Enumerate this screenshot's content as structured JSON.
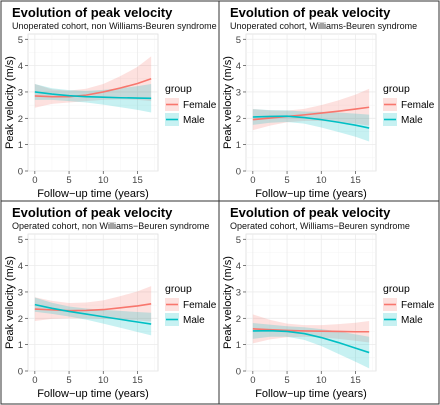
{
  "chart_data": [
    {
      "type": "line",
      "title": "Evolution of peak velocity",
      "subtitle": "Unoperated cohort, non Williams-Beuren syndrome",
      "xlabel": "Follow−up time (years)",
      "ylabel": "Peak velocity (m/s)",
      "xlim": [
        -1,
        18
      ],
      "ylim": [
        0,
        5.2
      ],
      "xticks": [
        0,
        5,
        10,
        15
      ],
      "yticks": [
        0,
        1,
        2,
        3,
        4,
        5
      ],
      "grid": true,
      "legend": {
        "title": "group",
        "position": "right"
      },
      "series": [
        {
          "name": "Female",
          "color": "#F8766D",
          "x": [
            0,
            2.5,
            5,
            7.5,
            10,
            12.5,
            15,
            17
          ],
          "y": [
            2.85,
            2.82,
            2.82,
            2.88,
            3.0,
            3.15,
            3.32,
            3.5
          ],
          "lower": [
            2.4,
            2.55,
            2.6,
            2.65,
            2.7,
            2.72,
            2.7,
            2.65
          ],
          "upper": [
            3.3,
            3.1,
            3.05,
            3.12,
            3.3,
            3.6,
            3.95,
            4.35
          ]
        },
        {
          "name": "Male",
          "color": "#00BFC4",
          "x": [
            0,
            2.5,
            5,
            7.5,
            10,
            12.5,
            15,
            17
          ],
          "y": [
            3.0,
            2.92,
            2.86,
            2.82,
            2.8,
            2.78,
            2.77,
            2.76
          ],
          "lower": [
            2.7,
            2.7,
            2.65,
            2.6,
            2.52,
            2.42,
            2.32,
            2.22
          ],
          "upper": [
            3.3,
            3.14,
            3.07,
            3.04,
            3.08,
            3.14,
            3.22,
            3.3
          ]
        }
      ]
    },
    {
      "type": "line",
      "title": "Evolution of peak velocity",
      "subtitle": "Unoperated cohort, Williams-Beuren syndrome",
      "xlabel": "Follow−up time (years)",
      "ylabel": "Peak velocity (m/s)",
      "xlim": [
        -1,
        18
      ],
      "ylim": [
        0,
        5.2
      ],
      "xticks": [
        0,
        5,
        10,
        15
      ],
      "yticks": [
        0,
        1,
        2,
        3,
        4,
        5
      ],
      "grid": true,
      "legend": {
        "title": "group",
        "position": "right"
      },
      "series": [
        {
          "name": "Female",
          "color": "#F8766D",
          "x": [
            0,
            2.5,
            5,
            7.5,
            10,
            12.5,
            15,
            17
          ],
          "y": [
            1.95,
            2.01,
            2.07,
            2.13,
            2.2,
            2.27,
            2.35,
            2.42
          ],
          "lower": [
            1.55,
            1.72,
            1.85,
            1.9,
            1.9,
            1.86,
            1.8,
            1.72
          ],
          "upper": [
            2.35,
            2.3,
            2.29,
            2.36,
            2.5,
            2.68,
            2.9,
            3.12
          ]
        },
        {
          "name": "Male",
          "color": "#00BFC4",
          "x": [
            0,
            2.5,
            5,
            7.5,
            10,
            12.5,
            15,
            17
          ],
          "y": [
            2.05,
            2.07,
            2.08,
            2.03,
            1.95,
            1.85,
            1.74,
            1.63
          ],
          "lower": [
            1.75,
            1.83,
            1.86,
            1.8,
            1.65,
            1.48,
            1.3,
            1.12
          ],
          "upper": [
            2.35,
            2.31,
            2.3,
            2.26,
            2.25,
            2.22,
            2.18,
            2.14
          ]
        }
      ]
    },
    {
      "type": "line",
      "title": "Evolution of peak velocity",
      "subtitle": "Operated cohort, non Williams−Beuren syndrome",
      "xlabel": "Follow−up time (years)",
      "ylabel": "Peak velocity (m/s)",
      "xlim": [
        -1,
        18
      ],
      "ylim": [
        0,
        5.2
      ],
      "xticks": [
        0,
        5,
        10,
        15
      ],
      "yticks": [
        0,
        1,
        2,
        3,
        4,
        5
      ],
      "grid": true,
      "legend": {
        "title": "group",
        "position": "right"
      },
      "series": [
        {
          "name": "Female",
          "color": "#F8766D",
          "x": [
            0,
            2.5,
            5,
            7.5,
            10,
            12.5,
            15,
            17
          ],
          "y": [
            2.35,
            2.32,
            2.29,
            2.3,
            2.33,
            2.4,
            2.47,
            2.55
          ],
          "lower": [
            1.9,
            1.98,
            2.0,
            2.0,
            1.98,
            1.96,
            1.92,
            1.88
          ],
          "upper": [
            2.8,
            2.66,
            2.58,
            2.6,
            2.68,
            2.84,
            3.02,
            3.22
          ]
        },
        {
          "name": "Male",
          "color": "#00BFC4",
          "x": [
            0,
            2.5,
            5,
            7.5,
            10,
            12.5,
            15,
            17
          ],
          "y": [
            2.52,
            2.38,
            2.26,
            2.16,
            2.06,
            1.96,
            1.86,
            1.78
          ],
          "lower": [
            2.25,
            2.17,
            2.07,
            1.95,
            1.8,
            1.64,
            1.48,
            1.35
          ],
          "upper": [
            2.79,
            2.59,
            2.45,
            2.37,
            2.32,
            2.28,
            2.24,
            2.21
          ]
        }
      ]
    },
    {
      "type": "line",
      "title": "Evolution of peak velocity",
      "subtitle": "Operated cohort, Williams−Beuren syndrome",
      "xlabel": "Follow−up time (years)",
      "ylabel": "Peak velocity (m/s)",
      "xlim": [
        -1,
        18
      ],
      "ylim": [
        0,
        5.2
      ],
      "xticks": [
        0,
        5,
        10,
        15
      ],
      "yticks": [
        0,
        1,
        2,
        3,
        4,
        5
      ],
      "grid": true,
      "legend": {
        "title": "group",
        "position": "right"
      },
      "series": [
        {
          "name": "Female",
          "color": "#F8766D",
          "x": [
            0,
            2.5,
            5,
            7.5,
            10,
            12.5,
            15,
            17
          ],
          "y": [
            1.6,
            1.57,
            1.54,
            1.52,
            1.51,
            1.5,
            1.49,
            1.49
          ],
          "lower": [
            1.05,
            1.2,
            1.28,
            1.3,
            1.28,
            1.22,
            1.15,
            1.08
          ],
          "upper": [
            2.15,
            1.94,
            1.8,
            1.74,
            1.74,
            1.78,
            1.83,
            1.9
          ]
        },
        {
          "name": "Male",
          "color": "#00BFC4",
          "x": [
            0,
            2.5,
            5,
            7.5,
            10,
            12.5,
            15,
            17
          ],
          "y": [
            1.52,
            1.53,
            1.5,
            1.42,
            1.27,
            1.08,
            0.87,
            0.7
          ],
          "lower": [
            1.22,
            1.3,
            1.3,
            1.18,
            0.95,
            0.65,
            0.35,
            0.1
          ],
          "upper": [
            1.82,
            1.76,
            1.7,
            1.66,
            1.59,
            1.51,
            1.39,
            1.3
          ]
        }
      ]
    }
  ]
}
